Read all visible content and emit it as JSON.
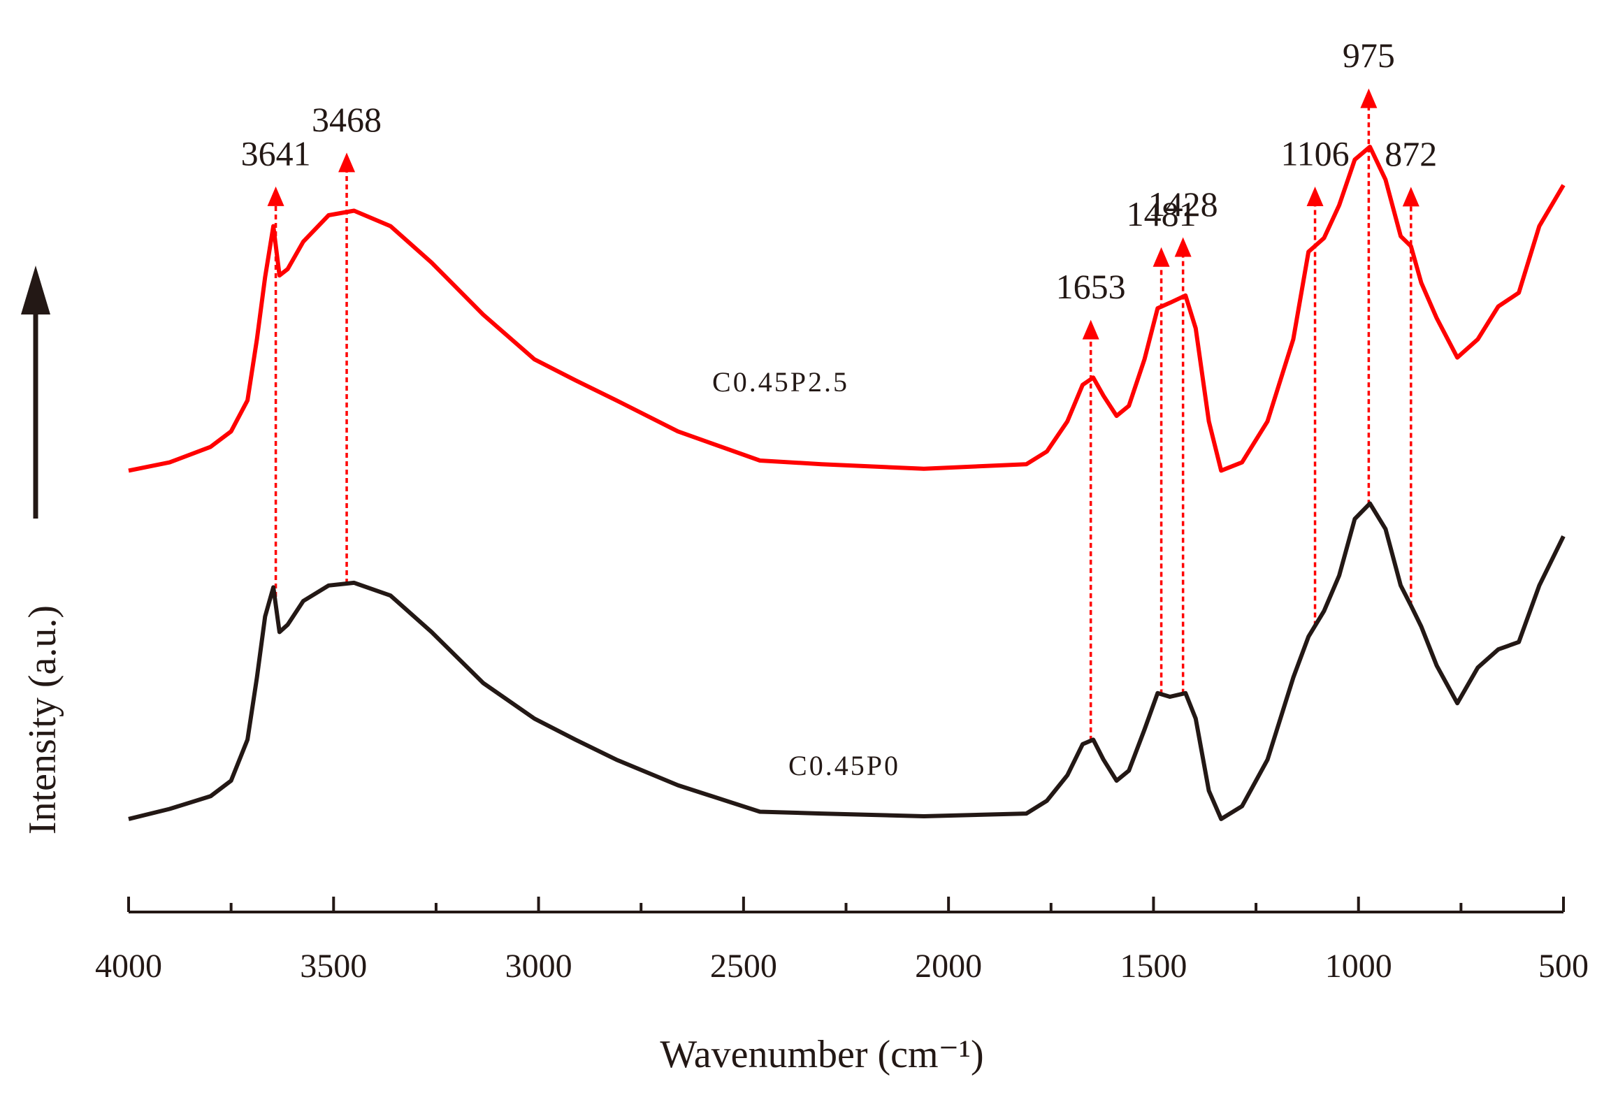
{
  "chart_data": {
    "type": "line",
    "xlabel": "Wavenumber (cm⁻¹)",
    "ylabel": "Intensity (a.u.)",
    "xlim": [
      4000,
      500
    ],
    "xticks": [
      4000,
      3500,
      3000,
      2500,
      2000,
      1500,
      1000,
      500
    ],
    "xminorticks": [
      3750,
      3250,
      2750,
      2250,
      1750,
      1250,
      750
    ],
    "ylim": [
      0,
      100
    ],
    "x": [
      4000,
      3900,
      3800,
      3750,
      3710,
      3687,
      3667,
      3647,
      3632,
      3612,
      3574,
      3512,
      3450,
      3361,
      3261,
      3135,
      3010,
      2910,
      2810,
      2660,
      2460,
      2310,
      2060,
      1810,
      1760,
      1710,
      1673,
      1647,
      1622,
      1590,
      1560,
      1522,
      1490,
      1460,
      1422,
      1397,
      1365,
      1335,
      1284,
      1222,
      1159,
      1122,
      1084,
      1047,
      1009,
      972,
      934,
      897,
      872,
      847,
      809,
      759,
      709,
      659,
      609,
      559,
      500
    ],
    "series": [
      {
        "name": "C0.45P2.5",
        "color": "#ff0000",
        "values": [
          48.4,
          49.3,
          51.0,
          52.7,
          56.1,
          62.8,
          69.6,
          75.2,
          69.8,
          70.5,
          73.5,
          76.4,
          76.9,
          75.2,
          71.2,
          65.5,
          60.6,
          58.3,
          56.1,
          52.7,
          49.5,
          49.1,
          48.6,
          49.1,
          50.5,
          53.8,
          57.8,
          58.6,
          56.6,
          54.4,
          55.5,
          60.6,
          66.2,
          66.8,
          67.6,
          64.0,
          53.8,
          48.4,
          49.3,
          53.8,
          62.8,
          72.4,
          73.9,
          77.5,
          82.5,
          83.9,
          80.3,
          74.1,
          73.0,
          69.0,
          65.1,
          60.8,
          62.8,
          66.4,
          67.9,
          75.2,
          79.7
        ]
      },
      {
        "name": "C0.45P0",
        "color": "#231815",
        "values": [
          10.2,
          11.3,
          12.7,
          14.4,
          18.9,
          25.7,
          32.4,
          35.6,
          30.7,
          31.5,
          34.1,
          35.8,
          36.1,
          34.7,
          30.7,
          25.1,
          21.2,
          18.9,
          16.7,
          13.9,
          11.0,
          10.8,
          10.5,
          10.8,
          12.2,
          15.0,
          18.4,
          18.9,
          16.7,
          14.4,
          15.5,
          20.0,
          24.0,
          23.6,
          24.0,
          21.2,
          13.3,
          10.2,
          11.6,
          16.7,
          25.7,
          30.2,
          33.0,
          36.9,
          43.1,
          44.8,
          42.0,
          35.8,
          33.6,
          31.3,
          27.0,
          22.9,
          26.8,
          28.8,
          29.6,
          35.8,
          41.2
        ]
      }
    ],
    "peaks": [
      3641,
      3468,
      1653,
      1481,
      1428,
      1106,
      975,
      872
    ],
    "peak_color": "#ff0000"
  }
}
